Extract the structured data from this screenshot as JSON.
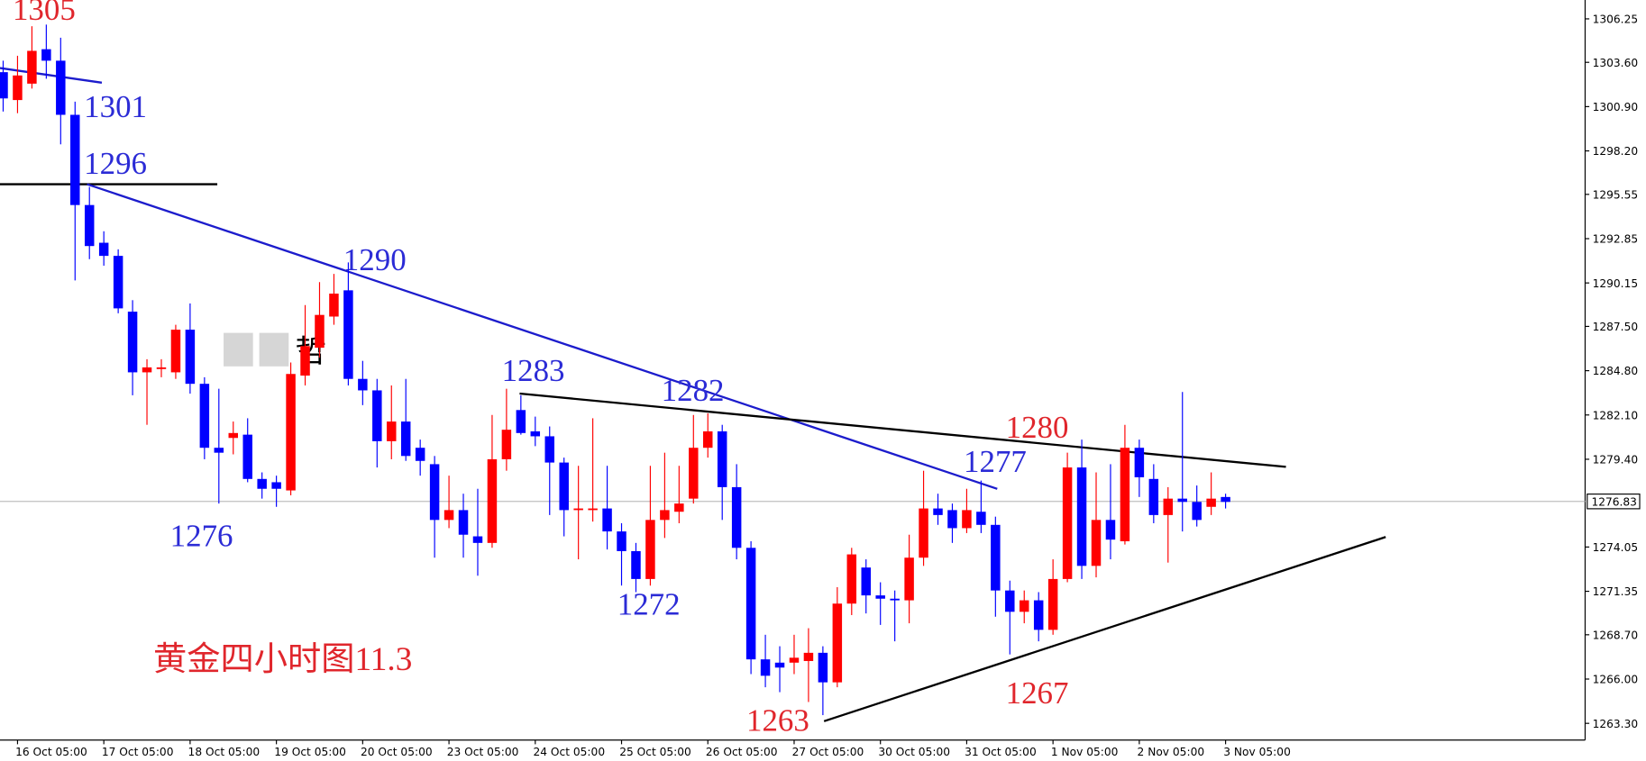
{
  "chart_data": {
    "type": "candlestick",
    "up_color": "#ff0000",
    "down_color": "#0000ff",
    "categories": [
      null,
      "16 Oct 05:00",
      null,
      null,
      null,
      null,
      null,
      "17 Oct 05:00",
      null,
      null,
      null,
      null,
      null,
      "18 Oct 05:00",
      null,
      null,
      null,
      null,
      null,
      "19 Oct 05:00",
      null,
      null,
      null,
      null,
      null,
      "20 Oct 05:00",
      null,
      null,
      null,
      null,
      null,
      "23 Oct 05:00",
      null,
      null,
      null,
      null,
      null,
      "24 Oct 05:00",
      null,
      null,
      null,
      null,
      null,
      "25 Oct 05:00",
      null,
      null,
      null,
      null,
      null,
      "26 Oct 05:00",
      null,
      null,
      null,
      null,
      null,
      "27 Oct 05:00",
      null,
      null,
      null,
      null,
      null,
      "30 Oct 05:00",
      null,
      null,
      null,
      null,
      null,
      "31 Oct 05:00",
      null,
      null,
      null,
      null,
      null,
      "1 Nov 05:00",
      null,
      null,
      null,
      null,
      null,
      "2 Nov 05:00",
      null,
      null,
      null,
      null,
      null,
      "3 Nov 05:00"
    ],
    "open": [
      1303.0,
      1301.3,
      1302.3,
      1304.4,
      1303.7,
      1300.4,
      1294.9,
      1292.6,
      1291.8,
      1288.4,
      1284.7,
      1284.9,
      1284.7,
      1287.3,
      1284.0,
      1280.1,
      1280.7,
      1280.9,
      1278.2,
      1278.0,
      1277.5,
      1284.5,
      1286.2,
      1288.1,
      1289.7,
      1284.3,
      1283.6,
      1280.5,
      1281.7,
      1280.1,
      1279.1,
      1275.7,
      1276.3,
      1274.7,
      1274.3,
      1279.4,
      1282.4,
      1281.1,
      1280.8,
      1279.2,
      1276.3,
      1276.3,
      1276.4,
      1275.0,
      1273.8,
      1272.1,
      1275.7,
      1276.2,
      1277.0,
      1280.1,
      1281.1,
      1277.7,
      1274.0,
      1267.2,
      1267.0,
      1267.0,
      1267.1,
      1267.6,
      1265.8,
      1270.6,
      1272.8,
      1271.1,
      1270.9,
      1270.8,
      1273.4,
      1276.4,
      1276.3,
      1275.2,
      1276.2,
      1275.4,
      1271.4,
      1270.1,
      1270.8,
      1269.0,
      1272.1,
      1278.9,
      1272.9,
      1275.7,
      1274.4,
      1280.1,
      1278.2,
      1276.0,
      1277.0,
      1276.8,
      1276.5,
      1277.1
    ],
    "high": [
      1303.7,
      1304.0,
      1305.8,
      1305.9,
      1305.1,
      1301.2,
      1296.0,
      1293.3,
      1292.2,
      1289.1,
      1285.5,
      1285.5,
      1287.6,
      1288.9,
      1284.4,
      1283.7,
      1281.7,
      1281.9,
      1278.6,
      1278.4,
      1285.3,
      1288.8,
      1290.2,
      1290.7,
      1291.4,
      1285.4,
      1284.3,
      1283.9,
      1284.3,
      1280.6,
      1279.6,
      1278.4,
      1277.3,
      1277.6,
      1282.1,
      1283.7,
      1283.3,
      1282.0,
      1281.4,
      1279.5,
      1279.0,
      1281.9,
      1279.0,
      1275.5,
      1274.3,
      1279.0,
      1279.8,
      1279.0,
      1282.1,
      1282.2,
      1281.5,
      1279.1,
      1274.4,
      1268.7,
      1268.0,
      1268.7,
      1269.1,
      1268.0,
      1271.6,
      1274.0,
      1273.3,
      1271.9,
      1271.4,
      1274.8,
      1278.7,
      1277.3,
      1276.7,
      1277.6,
      1278.1,
      1275.9,
      1272.0,
      1271.4,
      1271.3,
      1273.3,
      1279.8,
      1280.6,
      1278.6,
      1279.1,
      1281.5,
      1280.6,
      1279.1,
      1277.7,
      1283.5,
      1277.8,
      1278.6,
      1277.3
    ],
    "low": [
      1300.6,
      1300.5,
      1302.0,
      1302.6,
      1298.6,
      1290.3,
      1291.6,
      1291.2,
      1288.3,
      1283.3,
      1281.5,
      1284.4,
      1284.3,
      1283.4,
      1279.4,
      1276.7,
      1279.7,
      1278.0,
      1277.0,
      1276.5,
      1277.2,
      1283.9,
      1285.6,
      1287.6,
      1283.9,
      1282.7,
      1278.9,
      1279.4,
      1279.3,
      1278.4,
      1273.4,
      1275.2,
      1273.4,
      1272.3,
      1274.0,
      1278.7,
      1280.9,
      1280.2,
      1276.0,
      1274.7,
      1273.3,
      1275.6,
      1273.9,
      1271.7,
      1271.3,
      1271.7,
      1274.6,
      1275.5,
      1276.7,
      1279.5,
      1275.7,
      1273.3,
      1266.3,
      1265.5,
      1265.2,
      1266.3,
      1264.6,
      1263.8,
      1265.5,
      1269.9,
      1270.0,
      1269.3,
      1268.3,
      1269.4,
      1272.9,
      1275.4,
      1274.3,
      1274.9,
      1274.9,
      1269.8,
      1267.5,
      1269.4,
      1268.3,
      1268.7,
      1271.9,
      1272.1,
      1272.2,
      1273.3,
      1274.2,
      1277.1,
      1275.5,
      1273.1,
      1275.0,
      1275.3,
      1276.0,
      1276.4
    ],
    "close": [
      1301.4,
      1302.8,
      1304.3,
      1303.7,
      1300.4,
      1294.9,
      1292.4,
      1291.8,
      1288.6,
      1284.7,
      1285.0,
      1285.0,
      1287.3,
      1284.0,
      1280.1,
      1279.8,
      1281.0,
      1278.2,
      1277.6,
      1277.6,
      1284.6,
      1286.3,
      1288.2,
      1289.5,
      1284.3,
      1283.6,
      1280.5,
      1281.7,
      1279.6,
      1279.3,
      1275.7,
      1276.3,
      1274.8,
      1274.3,
      1279.4,
      1281.2,
      1281.0,
      1280.8,
      1279.2,
      1276.3,
      1276.4,
      1276.4,
      1275.0,
      1273.8,
      1272.1,
      1275.7,
      1276.3,
      1276.7,
      1280.1,
      1281.1,
      1277.7,
      1274.0,
      1267.2,
      1266.2,
      1266.7,
      1267.3,
      1267.6,
      1265.8,
      1270.6,
      1273.6,
      1271.1,
      1270.9,
      1270.8,
      1273.4,
      1276.4,
      1276.0,
      1275.2,
      1276.3,
      1275.4,
      1271.4,
      1270.1,
      1270.8,
      1269.0,
      1272.1,
      1278.9,
      1272.9,
      1275.7,
      1274.5,
      1280.1,
      1278.3,
      1276.0,
      1277.0,
      1276.8,
      1275.7,
      1277.0,
      1276.8
    ],
    "ylim": [
      1262.28,
      1307.4
    ],
    "yticks": [
      1306.25,
      {
        "value": 1303.6,
        "label": "1303.60"
      },
      {
        "value": 1300.9,
        "label": "1300.90"
      },
      {
        "value": 1298.2,
        "label": "1298.20"
      },
      1295.55,
      1292.85,
      1290.15,
      {
        "value": 1287.5,
        "label": "1287.50"
      },
      {
        "value": 1284.8,
        "label": "1284.80"
      },
      {
        "value": 1282.1,
        "label": "1282.10"
      },
      {
        "value": 1279.4,
        "label": "1279.40"
      },
      1274.05,
      1271.35,
      {
        "value": 1268.7,
        "label": "1268.70"
      },
      {
        "value": 1266.0,
        "label": "1266.00"
      },
      {
        "value": 1263.3,
        "label": "1263.30"
      }
    ],
    "current_price": 1276.83,
    "annotations": [
      {
        "text": "1305",
        "color": "#e0262c"
      },
      {
        "text": "1301",
        "color": "#2b2bd6"
      },
      {
        "text": "1296",
        "color": "#2b2bd6"
      },
      {
        "text": "1290",
        "color": "#2b2bd6"
      },
      {
        "text": "1283",
        "color": "#2b2bd6"
      },
      {
        "text": "1282",
        "color": "#2b2bd6"
      },
      {
        "text": "1277",
        "color": "#2b2bd6"
      },
      {
        "text": "1280",
        "color": "#e0262c"
      },
      {
        "text": "1276",
        "color": "#2b2bd6"
      },
      {
        "text": "1272",
        "color": "#2b2bd6"
      },
      {
        "text": "1263",
        "color": "#e0262c"
      },
      {
        "text": "1267",
        "color": "#e0262c"
      },
      {
        "text": "黄金四小时图11.3",
        "color": "#e0262c"
      }
    ],
    "watermark": "哲"
  }
}
